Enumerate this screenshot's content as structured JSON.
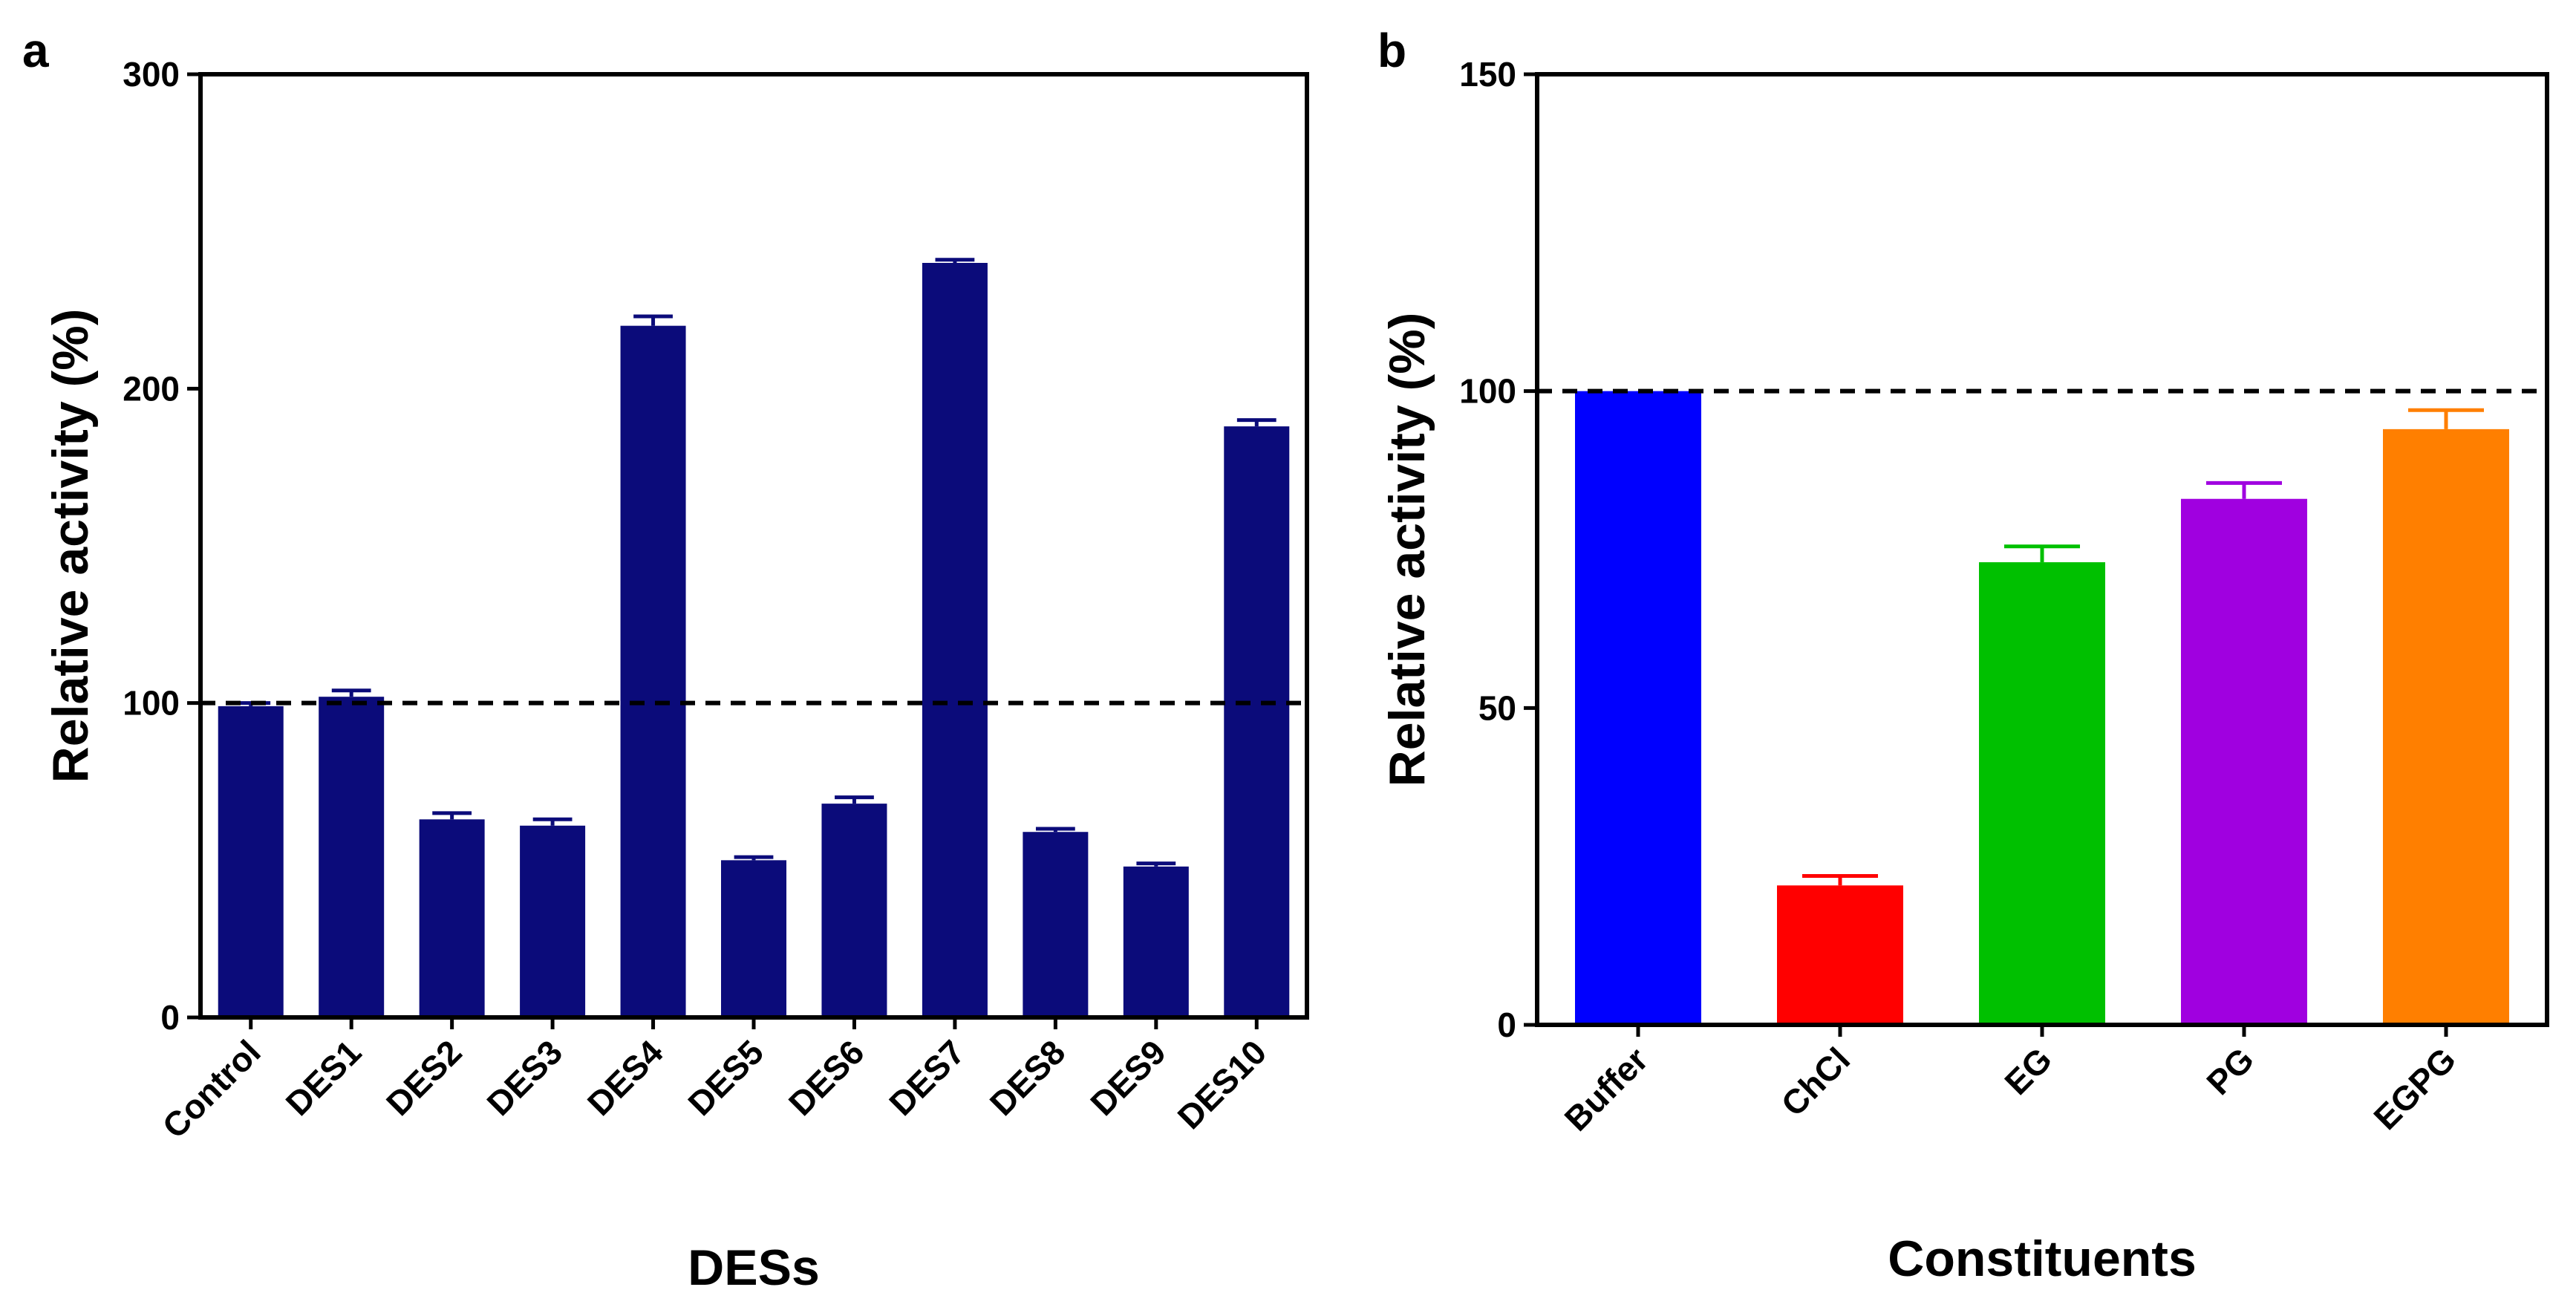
{
  "chart_data": [
    {
      "panel_label": "a",
      "type": "bar",
      "xlabel": "DESs",
      "ylabel": "Relative activity (%)",
      "ylim": [
        0,
        300
      ],
      "yticks": [
        0,
        100,
        200,
        300
      ],
      "reference_line": 100,
      "categories": [
        "Control",
        "DES1",
        "DES2",
        "DES3",
        "DES4",
        "DES5",
        "DES6",
        "DES7",
        "DES8",
        "DES9",
        "DES10"
      ],
      "values": [
        99,
        102,
        63,
        61,
        220,
        50,
        68,
        240,
        59,
        48,
        188
      ],
      "errors": [
        1,
        2,
        2,
        2,
        3,
        1,
        2,
        1,
        1,
        1,
        2
      ],
      "colors": [
        "#0b0b7a",
        "#0b0b7a",
        "#0b0b7a",
        "#0b0b7a",
        "#0b0b7a",
        "#0b0b7a",
        "#0b0b7a",
        "#0b0b7a",
        "#0b0b7a",
        "#0b0b7a",
        "#0b0b7a"
      ],
      "grid": false
    },
    {
      "panel_label": "b",
      "type": "bar",
      "xlabel": "Constituents",
      "ylabel": "Relative activity (%)",
      "ylim": [
        0,
        150
      ],
      "yticks": [
        0,
        50,
        100,
        150
      ],
      "reference_line": 100,
      "categories": [
        "Buffer",
        "ChCl",
        "EG",
        "PG",
        "EGPG"
      ],
      "values": [
        100,
        22,
        73,
        83,
        94
      ],
      "errors": [
        0,
        1.5,
        2.5,
        2.5,
        3
      ],
      "colors": [
        "#0000ff",
        "#ff0000",
        "#00c000",
        "#a000e0",
        "#ff7f00"
      ],
      "grid": false
    }
  ]
}
